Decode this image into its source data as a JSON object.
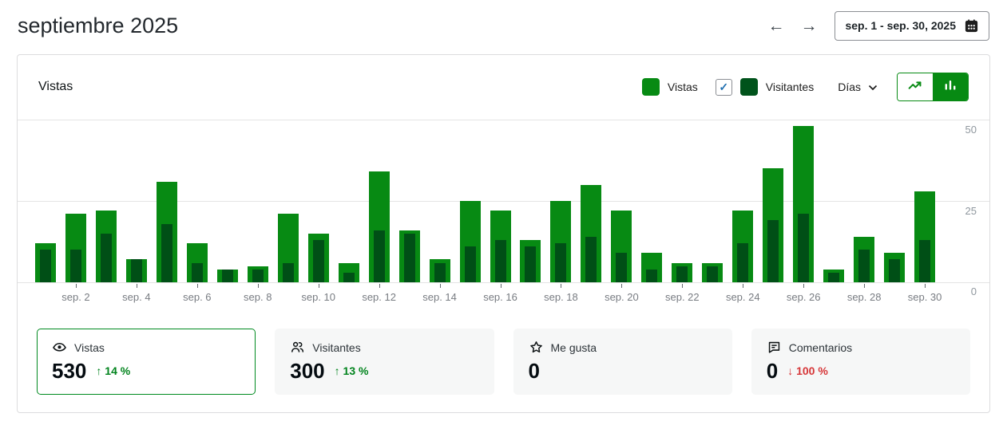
{
  "header": {
    "title": "septiembre 2025",
    "prev_arrow": "←",
    "next_arrow": "→",
    "date_range": "sep. 1 - sep. 30, 2025"
  },
  "chart_card": {
    "title": "Vistas",
    "legend": {
      "vistas_label": "Vistas",
      "visitantes_label": "Visitantes",
      "visitantes_checked": true,
      "check_glyph": "✓"
    },
    "interval_label": "Días",
    "chart_type_selected": "bar"
  },
  "chart_data": {
    "type": "bar",
    "title": "Vistas",
    "categories": [
      "sep. 1",
      "sep. 2",
      "sep. 3",
      "sep. 4",
      "sep. 5",
      "sep. 6",
      "sep. 7",
      "sep. 8",
      "sep. 9",
      "sep. 10",
      "sep. 11",
      "sep. 12",
      "sep. 13",
      "sep. 14",
      "sep. 15",
      "sep. 16",
      "sep. 17",
      "sep. 18",
      "sep. 19",
      "sep. 20",
      "sep. 21",
      "sep. 22",
      "sep. 23",
      "sep. 24",
      "sep. 25",
      "sep. 26",
      "sep. 27",
      "sep. 28",
      "sep. 29",
      "sep. 30"
    ],
    "x_tick_labels_shown": [
      "sep. 2",
      "sep. 4",
      "sep. 6",
      "sep. 8",
      "sep. 10",
      "sep. 12",
      "sep. 14",
      "sep. 16",
      "sep. 18",
      "sep. 20",
      "sep. 22",
      "sep. 24",
      "sep. 26",
      "sep. 28",
      "sep. 30"
    ],
    "series": [
      {
        "name": "Vistas",
        "color": "#078a13",
        "values": [
          12,
          21,
          22,
          7,
          31,
          12,
          4,
          5,
          21,
          15,
          6,
          34,
          16,
          7,
          25,
          22,
          13,
          25,
          30,
          22,
          9,
          6,
          6,
          22,
          35,
          48,
          4,
          14,
          9,
          28
        ]
      },
      {
        "name": "Visitantes",
        "color": "#004f16",
        "values": [
          10,
          10,
          15,
          7,
          18,
          6,
          4,
          4,
          6,
          13,
          3,
          16,
          15,
          6,
          11,
          13,
          11,
          12,
          14,
          9,
          4,
          5,
          5,
          12,
          19,
          21,
          3,
          10,
          7,
          13
        ]
      }
    ],
    "ylim": [
      0,
      50
    ],
    "yticks": [
      0,
      25,
      50
    ],
    "ytick_labels": {
      "top": "50",
      "mid": "25",
      "bottom": "0"
    },
    "grid": true,
    "legend_position": "top-right"
  },
  "summary": {
    "cards": [
      {
        "label": "Vistas",
        "value": "530",
        "arrow": "↑",
        "delta": "14 %",
        "direction": "up",
        "selected": true
      },
      {
        "label": "Visitantes",
        "value": "300",
        "arrow": "↑",
        "delta": "13 %",
        "direction": "up",
        "selected": false
      },
      {
        "label": "Me gusta",
        "value": "0",
        "arrow": "",
        "delta": "",
        "direction": "none",
        "selected": false
      },
      {
        "label": "Comentarios",
        "value": "0",
        "arrow": "↓",
        "delta": "100 %",
        "direction": "down",
        "selected": false
      }
    ]
  },
  "colors": {
    "vistas_bar": "#078a13",
    "visitantes_bar": "#004f16",
    "selected_card_border": "#008a20",
    "delta_up": "#00831c",
    "delta_down": "#d63638",
    "checkbox_check": "#2271b1",
    "gridline": "#e4e4e4",
    "axis_text": "#787c82"
  }
}
